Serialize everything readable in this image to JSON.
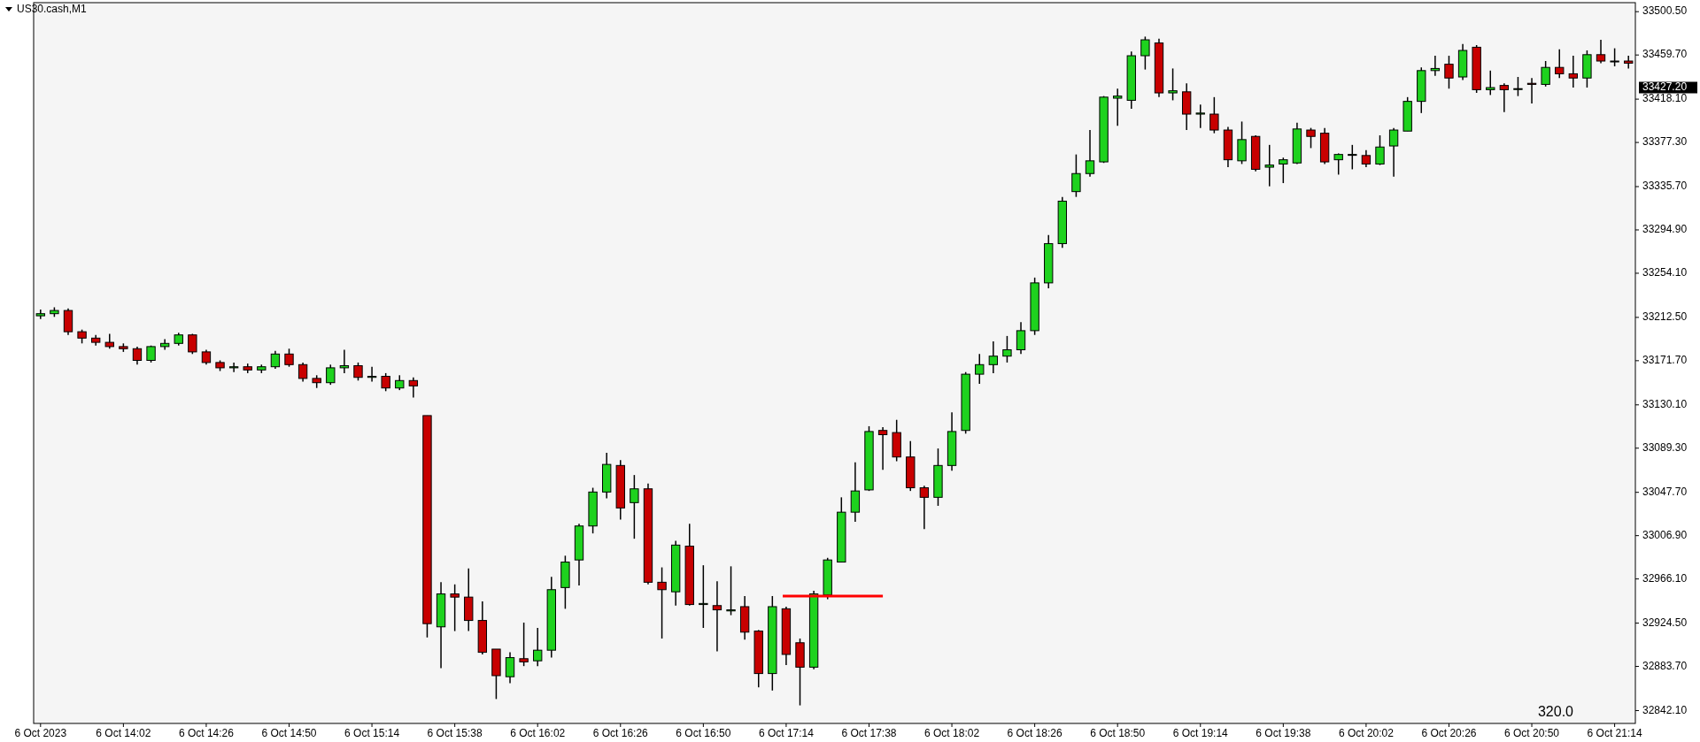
{
  "chart_data": {
    "type": "candlestick",
    "title": "US30.cash,M1",
    "x": [
      "2023-10-06T13:38",
      "2023-10-06T13:42",
      "2023-10-06T13:46",
      "2023-10-06T13:50",
      "2023-10-06T13:54",
      "2023-10-06T13:58",
      "2023-10-06T14:02",
      "2023-10-06T14:06",
      "2023-10-06T14:10",
      "2023-10-06T14:14",
      "2023-10-06T14:18",
      "2023-10-06T14:22",
      "2023-10-06T14:26",
      "2023-10-06T14:30",
      "2023-10-06T14:34",
      "2023-10-06T14:38",
      "2023-10-06T14:42",
      "2023-10-06T14:46",
      "2023-10-06T14:50",
      "2023-10-06T14:54",
      "2023-10-06T14:58",
      "2023-10-06T15:02",
      "2023-10-06T15:06",
      "2023-10-06T15:10",
      "2023-10-06T15:14",
      "2023-10-06T15:18",
      "2023-10-06T15:22",
      "2023-10-06T15:26",
      "2023-10-06T15:30",
      "2023-10-06T15:34",
      "2023-10-06T15:38",
      "2023-10-06T15:42",
      "2023-10-06T15:46",
      "2023-10-06T15:50",
      "2023-10-06T15:54",
      "2023-10-06T15:58",
      "2023-10-06T16:02",
      "2023-10-06T16:06",
      "2023-10-06T16:10",
      "2023-10-06T16:14",
      "2023-10-06T16:18",
      "2023-10-06T16:22",
      "2023-10-06T16:26",
      "2023-10-06T16:30",
      "2023-10-06T16:34",
      "2023-10-06T16:38",
      "2023-10-06T16:42",
      "2023-10-06T16:46",
      "2023-10-06T16:50",
      "2023-10-06T16:54",
      "2023-10-06T16:58",
      "2023-10-06T17:02",
      "2023-10-06T17:06",
      "2023-10-06T17:10",
      "2023-10-06T17:14",
      "2023-10-06T17:18",
      "2023-10-06T17:22",
      "2023-10-06T17:26",
      "2023-10-06T17:30",
      "2023-10-06T17:34",
      "2023-10-06T17:38",
      "2023-10-06T17:42",
      "2023-10-06T17:46",
      "2023-10-06T17:50",
      "2023-10-06T17:54",
      "2023-10-06T17:58",
      "2023-10-06T18:02",
      "2023-10-06T18:06",
      "2023-10-06T18:10",
      "2023-10-06T18:14",
      "2023-10-06T18:18",
      "2023-10-06T18:22",
      "2023-10-06T18:26",
      "2023-10-06T18:30",
      "2023-10-06T18:34",
      "2023-10-06T18:38",
      "2023-10-06T18:42",
      "2023-10-06T18:46",
      "2023-10-06T18:50",
      "2023-10-06T18:54",
      "2023-10-06T18:58",
      "2023-10-06T19:02",
      "2023-10-06T19:06",
      "2023-10-06T19:10",
      "2023-10-06T19:14",
      "2023-10-06T19:18",
      "2023-10-06T19:22",
      "2023-10-06T19:26",
      "2023-10-06T19:30",
      "2023-10-06T19:34",
      "2023-10-06T19:38",
      "2023-10-06T19:42",
      "2023-10-06T19:46",
      "2023-10-06T19:50",
      "2023-10-06T19:54",
      "2023-10-06T19:58",
      "2023-10-06T20:02",
      "2023-10-06T20:06",
      "2023-10-06T20:10",
      "2023-10-06T20:14",
      "2023-10-06T20:18",
      "2023-10-06T20:22",
      "2023-10-06T20:26",
      "2023-10-06T20:30",
      "2023-10-06T20:34",
      "2023-10-06T20:38",
      "2023-10-06T20:42",
      "2023-10-06T20:46",
      "2023-10-06T20:50",
      "2023-10-06T20:54",
      "2023-10-06T20:58",
      "2023-10-06T21:02",
      "2023-10-06T21:06",
      "2023-10-06T21:10",
      "2023-10-06T21:14",
      "2023-10-06T21:18"
    ],
    "ohlc": [
      [
        33214,
        33220,
        33211,
        33216
      ],
      [
        33216,
        33222,
        33213,
        33219
      ],
      [
        33219,
        33221,
        33196,
        33199
      ],
      [
        33199,
        33201,
        33188,
        33193
      ],
      [
        33193,
        33196,
        33186,
        33189
      ],
      [
        33189,
        33197,
        33183,
        33185
      ],
      [
        33185,
        33188,
        33180,
        33183
      ],
      [
        33183,
        33185,
        33168,
        33172
      ],
      [
        33172,
        33186,
        33170,
        33185
      ],
      [
        33185,
        33192,
        33182,
        33188
      ],
      [
        33188,
        33198,
        33186,
        33196
      ],
      [
        33196,
        33197,
        33178,
        33180
      ],
      [
        33180,
        33182,
        33168,
        33170
      ],
      [
        33170,
        33172,
        33162,
        33165
      ],
      [
        33165,
        33170,
        33161,
        33166
      ],
      [
        33166,
        33169,
        33160,
        33163
      ],
      [
        33163,
        33168,
        33160,
        33166
      ],
      [
        33166,
        33181,
        33164,
        33178
      ],
      [
        33178,
        33183,
        33166,
        33168
      ],
      [
        33168,
        33170,
        33152,
        33155
      ],
      [
        33155,
        33158,
        33146,
        33151
      ],
      [
        33151,
        33168,
        33149,
        33165
      ],
      [
        33165,
        33182,
        33160,
        33167
      ],
      [
        33167,
        33170,
        33153,
        33156
      ],
      [
        33156,
        33166,
        33152,
        33157
      ],
      [
        33157,
        33160,
        33143,
        33146
      ],
      [
        33146,
        33158,
        33144,
        33153
      ],
      [
        33153,
        33156,
        33137,
        33148
      ],
      [
        33120,
        33120,
        32911,
        32924
      ],
      [
        32921,
        32963,
        32882,
        32952
      ],
      [
        32952,
        32961,
        32917,
        32949
      ],
      [
        32949,
        32976,
        32917,
        32927
      ],
      [
        32927,
        32945,
        32895,
        32897
      ],
      [
        32900,
        32900,
        32853,
        32875
      ],
      [
        32874,
        32897,
        32868,
        32892
      ],
      [
        32891,
        32925,
        32884,
        32888
      ],
      [
        32889,
        32920,
        32884,
        32899
      ],
      [
        32899,
        32968,
        32892,
        32956
      ],
      [
        32958,
        32988,
        32938,
        32982
      ],
      [
        32984,
        33018,
        32960,
        33016
      ],
      [
        33016,
        33052,
        33009,
        33048
      ],
      [
        33048,
        33085,
        33042,
        33074
      ],
      [
        33073,
        33078,
        33022,
        33033
      ],
      [
        33038,
        33064,
        33004,
        33051
      ],
      [
        33051,
        33056,
        32961,
        32963
      ],
      [
        32963,
        32977,
        32910,
        32956
      ],
      [
        32954,
        33002,
        32941,
        32998
      ],
      [
        32997,
        33018,
        32941,
        32942
      ],
      [
        32942,
        32979,
        32920,
        32943
      ],
      [
        32941,
        32964,
        32898,
        32937
      ],
      [
        32936,
        32978,
        32932,
        32937
      ],
      [
        32940,
        32950,
        32909,
        32916
      ],
      [
        32917,
        32918,
        32864,
        32877
      ],
      [
        32877,
        32950,
        32861,
        32940
      ],
      [
        32938,
        32940,
        32885,
        32895
      ],
      [
        32906,
        32910,
        32847,
        32883
      ],
      [
        32883,
        32955,
        32881,
        32952
      ],
      [
        32951,
        32986,
        32947,
        32984
      ],
      [
        32982,
        33043,
        32982,
        33029
      ],
      [
        33029,
        33076,
        33020,
        33049
      ],
      [
        33050,
        33110,
        33049,
        33105
      ],
      [
        33106,
        33109,
        33069,
        33102
      ],
      [
        33104,
        33116,
        33077,
        33081
      ],
      [
        33081,
        33096,
        33049,
        33052
      ],
      [
        33052,
        33054,
        33013,
        33043
      ],
      [
        33043,
        33089,
        33035,
        33073
      ],
      [
        33073,
        33123,
        33068,
        33105
      ],
      [
        33106,
        33161,
        33103,
        33159
      ],
      [
        33159,
        33178,
        33150,
        33168
      ],
      [
        33168,
        33190,
        33160,
        33176
      ],
      [
        33176,
        33195,
        33170,
        33182
      ],
      [
        33182,
        33208,
        33178,
        33200
      ],
      [
        33200,
        33250,
        33196,
        33245
      ],
      [
        33245,
        33290,
        33240,
        33282
      ],
      [
        33282,
        33326,
        33278,
        33322
      ],
      [
        33331,
        33366,
        33326,
        33348
      ],
      [
        33348,
        33389,
        33345,
        33360
      ],
      [
        33359,
        33421,
        33358,
        33420
      ],
      [
        33419,
        33428,
        33393,
        33421
      ],
      [
        33417,
        33463,
        33409,
        33459
      ],
      [
        33459,
        33477,
        33446,
        33474
      ],
      [
        33471,
        33475,
        33420,
        33424
      ],
      [
        33424,
        33447,
        33417,
        33426
      ],
      [
        33425,
        33433,
        33389,
        33404
      ],
      [
        33404,
        33413,
        33391,
        33405
      ],
      [
        33404,
        33420,
        33386,
        33389
      ],
      [
        33389,
        33392,
        33354,
        33361
      ],
      [
        33360,
        33397,
        33357,
        33380
      ],
      [
        33383,
        33384,
        33350,
        33352
      ],
      [
        33354,
        33375,
        33336,
        33356
      ],
      [
        33357,
        33363,
        33339,
        33361
      ],
      [
        33358,
        33396,
        33357,
        33390
      ],
      [
        33389,
        33391,
        33372,
        33383
      ],
      [
        33386,
        33391,
        33357,
        33359
      ],
      [
        33361,
        33367,
        33347,
        33366
      ],
      [
        33366,
        33375,
        33352,
        33366
      ],
      [
        33365,
        33370,
        33354,
        33357
      ],
      [
        33357,
        33384,
        33356,
        33373
      ],
      [
        33374,
        33391,
        33345,
        33389
      ],
      [
        33388,
        33420,
        33388,
        33416
      ],
      [
        33416,
        33448,
        33405,
        33445
      ],
      [
        33445,
        33459,
        33440,
        33447
      ],
      [
        33451,
        33459,
        33428,
        33438
      ],
      [
        33439,
        33470,
        33436,
        33464
      ],
      [
        33467,
        33469,
        33424,
        33427
      ],
      [
        33427,
        33445,
        33422,
        33429
      ],
      [
        33431,
        33433,
        33406,
        33427
      ],
      [
        33428,
        33439,
        33421,
        33428
      ],
      [
        33433,
        33438,
        33414,
        33432
      ],
      [
        33432,
        33454,
        33430,
        33448
      ],
      [
        33448,
        33465,
        33438,
        33442
      ],
      [
        33442,
        33459,
        33429,
        33438
      ],
      [
        33438,
        33464,
        33429,
        33460
      ],
      [
        33460,
        33474,
        33452,
        33454
      ],
      [
        33454,
        33466,
        33449,
        33454
      ],
      [
        33454,
        33459,
        33447,
        33452
      ]
    ],
    "colors": [
      "#1ed21e",
      "#1ed21e",
      "#c80000",
      "#c80000",
      "#c80000",
      "#c80000",
      "#c80000",
      "#c80000",
      "#1ed21e",
      "#1ed21e",
      "#1ed21e",
      "#c80000",
      "#c80000",
      "#c80000",
      "#1ed21e",
      "#c80000",
      "#1ed21e",
      "#1ed21e",
      "#c80000",
      "#c80000",
      "#c80000",
      "#1ed21e",
      "#1ed21e",
      "#c80000",
      "#1ed21e",
      "#c80000",
      "#1ed21e",
      "#c80000",
      "#c80000",
      "#1ed21e",
      "#c80000",
      "#c80000",
      "#c80000",
      "#c80000",
      "#1ed21e",
      "#c80000",
      "#1ed21e",
      "#1ed21e",
      "#1ed21e",
      "#1ed21e",
      "#1ed21e",
      "#1ed21e",
      "#c80000",
      "#1ed21e",
      "#c80000",
      "#c80000",
      "#1ed21e",
      "#c80000",
      "#1ed21e",
      "#c80000",
      "#1ed21e",
      "#c80000",
      "#c80000",
      "#1ed21e",
      "#c80000",
      "#c80000",
      "#1ed21e",
      "#1ed21e",
      "#1ed21e",
      "#1ed21e",
      "#1ed21e",
      "#c80000",
      "#c80000",
      "#c80000",
      "#c80000",
      "#1ed21e",
      "#1ed21e",
      "#1ed21e",
      "#1ed21e",
      "#1ed21e",
      "#1ed21e",
      "#1ed21e",
      "#1ed21e",
      "#1ed21e",
      "#1ed21e",
      "#1ed21e",
      "#1ed21e",
      "#1ed21e",
      "#1ed21e",
      "#1ed21e",
      "#1ed21e",
      "#c80000",
      "#1ed21e",
      "#c80000",
      "#1ed21e",
      "#c80000",
      "#c80000",
      "#1ed21e",
      "#c80000",
      "#1ed21e",
      "#1ed21e",
      "#1ed21e",
      "#c80000",
      "#c80000",
      "#1ed21e",
      "#1ed21e",
      "#c80000",
      "#1ed21e",
      "#1ed21e",
      "#1ed21e",
      "#1ed21e",
      "#1ed21e",
      "#c80000",
      "#1ed21e",
      "#c80000",
      "#1ed21e",
      "#c80000",
      "#1ed21e",
      "#c80000",
      "#1ed21e",
      "#c80000",
      "#c80000",
      "#1ed21e",
      "#c80000",
      "#1ed21e",
      "#c80000"
    ],
    "series": [
      {
        "type": "line",
        "x": [
          "2023-10-06T17:13",
          "2023-10-06T17:42"
        ],
        "values": [
          32950,
          32950
        ],
        "color": "#ff0000"
      }
    ],
    "xlim": [
      "2023-10-06T13:36",
      "2023-10-06T21:20"
    ],
    "xticks": [
      {
        "value": "2023-10-06T13:38",
        "label": "6 Oct 2023"
      },
      {
        "value": "2023-10-06T14:02",
        "label": "6 Oct 14:02"
      },
      {
        "value": "2023-10-06T14:26",
        "label": "6 Oct 14:26"
      },
      {
        "value": "2023-10-06T14:50",
        "label": "6 Oct 14:50"
      },
      {
        "value": "2023-10-06T15:14",
        "label": "6 Oct 15:14"
      },
      {
        "value": "2023-10-06T15:38",
        "label": "6 Oct 15:38"
      },
      {
        "value": "2023-10-06T16:02",
        "label": "6 Oct 16:02"
      },
      {
        "value": "2023-10-06T16:26",
        "label": "6 Oct 16:26"
      },
      {
        "value": "2023-10-06T16:50",
        "label": "6 Oct 16:50"
      },
      {
        "value": "2023-10-06T17:14",
        "label": "6 Oct 17:14"
      },
      {
        "value": "2023-10-06T17:38",
        "label": "6 Oct 17:38"
      },
      {
        "value": "2023-10-06T18:02",
        "label": "6 Oct 18:02"
      },
      {
        "value": "2023-10-06T18:26",
        "label": "6 Oct 18:26"
      },
      {
        "value": "2023-10-06T18:50",
        "label": "6 Oct 18:50"
      },
      {
        "value": "2023-10-06T19:14",
        "label": "6 Oct 19:14"
      },
      {
        "value": "2023-10-06T19:38",
        "label": "6 Oct 19:38"
      },
      {
        "value": "2023-10-06T20:02",
        "label": "6 Oct 20:02"
      },
      {
        "value": "2023-10-06T20:26",
        "label": "6 Oct 20:26"
      },
      {
        "value": "2023-10-06T20:50",
        "label": "6 Oct 20:50"
      },
      {
        "value": "2023-10-06T21:14",
        "label": "6 Oct 21:14"
      }
    ],
    "ylim": [
      32830,
      33509
    ],
    "yticks": [
      {
        "value": 33500.5,
        "label": "33500.50"
      },
      {
        "value": 33459.7,
        "label": "33459.70"
      },
      {
        "value": 33418.1,
        "label": "33418.10"
      },
      {
        "value": 33377.3,
        "label": "33377.30"
      },
      {
        "value": 33335.7,
        "label": "33335.70"
      },
      {
        "value": 33294.9,
        "label": "33294.90"
      },
      {
        "value": 33254.1,
        "label": "33254.10"
      },
      {
        "value": 33212.5,
        "label": "33212.50"
      },
      {
        "value": 33171.7,
        "label": "33171.70"
      },
      {
        "value": 33130.1,
        "label": "33130.10"
      },
      {
        "value": 33089.3,
        "label": "33089.30"
      },
      {
        "value": 33047.7,
        "label": "33047.70"
      },
      {
        "value": 33006.9,
        "label": "33006.90"
      },
      {
        "value": 32966.1,
        "label": "32966.10"
      },
      {
        "value": 32924.5,
        "label": "32924.50"
      },
      {
        "value": 32883.7,
        "label": "32883.70"
      },
      {
        "value": 32842.1,
        "label": "32842.10"
      }
    ],
    "annotations": [
      "320.0",
      "33427.20"
    ],
    "grid": false
  }
}
